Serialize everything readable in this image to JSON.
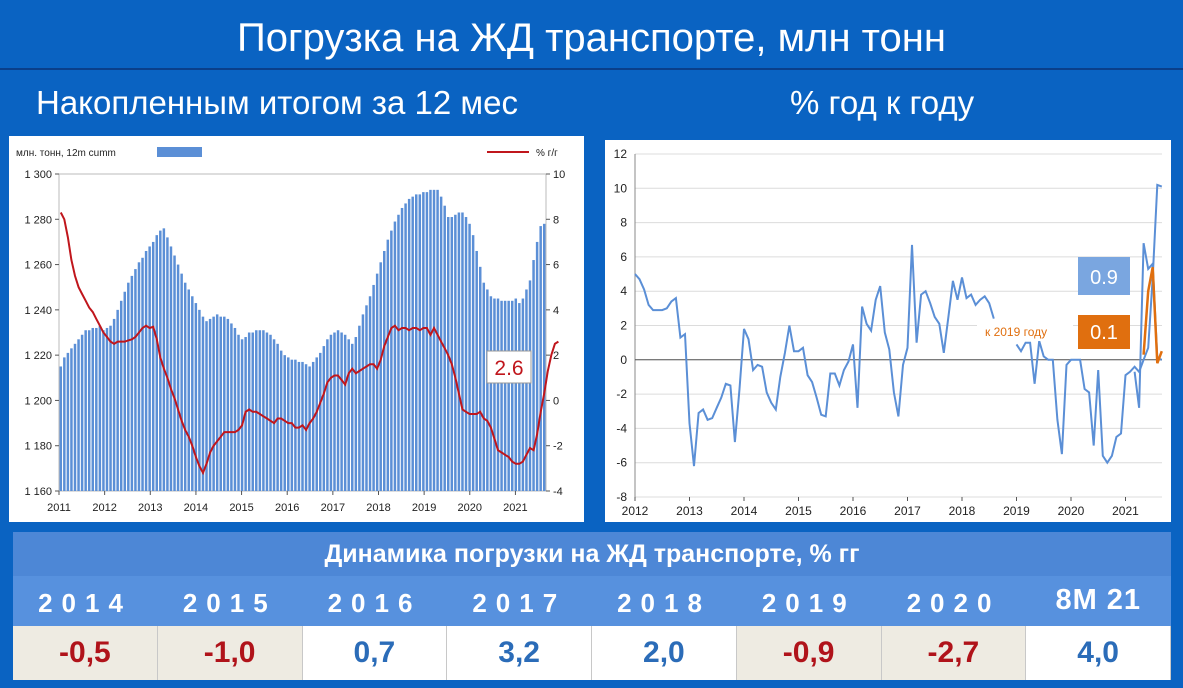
{
  "page": {
    "title": "Погрузка на ЖД транспорте, млн тонн",
    "left_subtitle": "Накопленным итогом за 12 мес",
    "right_subtitle": "% год к году"
  },
  "colors": {
    "background": "#0a63c2",
    "bars": "#5b8fd6",
    "red_line": "#c0161c",
    "blue_line": "#5b8fd6",
    "orange": "#e06f0f",
    "value_box": "#7aa6e0"
  },
  "chart_data": [
    {
      "type": "bar",
      "legend_bar": "млн. тонн, 12m cumm",
      "legend_line": "% г/г",
      "legend_placement": "top",
      "x_tick_labels": [
        "2011",
        "2012",
        "2013",
        "2014",
        "2015",
        "2016",
        "2017",
        "2018",
        "2019",
        "2020",
        "2021"
      ],
      "y_left_ticks": [
        "1 160",
        "1 180",
        "1 200",
        "1 220",
        "1 240",
        "1 260",
        "1 280",
        "1 300"
      ],
      "y_right_ticks": [
        "-4",
        "-2",
        "0",
        "2",
        "4",
        "6",
        "8",
        "10"
      ],
      "ylim_left": [
        1160,
        1300
      ],
      "ylim_right": [
        -4,
        10
      ],
      "x_start": 2011.0,
      "x_end": 2021.67,
      "bars": [
        1215,
        1219,
        1221,
        1223,
        1225,
        1227,
        1229,
        1231,
        1231,
        1232,
        1232,
        1233,
        1231,
        1232,
        1233,
        1236,
        1240,
        1244,
        1248,
        1252,
        1255,
        1258,
        1261,
        1263,
        1266,
        1268,
        1270,
        1273,
        1275,
        1276,
        1272,
        1268,
        1264,
        1260,
        1256,
        1252,
        1249,
        1246,
        1243,
        1240,
        1237,
        1235,
        1236,
        1237,
        1238,
        1237,
        1237,
        1236,
        1234,
        1232,
        1229,
        1227,
        1228,
        1230,
        1230,
        1231,
        1231,
        1231,
        1230,
        1229,
        1227,
        1225,
        1222,
        1220,
        1219,
        1218,
        1218,
        1217,
        1217,
        1216,
        1215,
        1217,
        1219,
        1221,
        1224,
        1227,
        1229,
        1230,
        1231,
        1230,
        1229,
        1227,
        1225,
        1228,
        1233,
        1238,
        1242,
        1246,
        1251,
        1256,
        1261,
        1266,
        1271,
        1275,
        1279,
        1282,
        1285,
        1287,
        1289,
        1290,
        1291,
        1291,
        1292,
        1292,
        1293,
        1293,
        1293,
        1290,
        1286,
        1281,
        1281,
        1282,
        1283,
        1283,
        1281,
        1278,
        1273,
        1266,
        1259,
        1252,
        1249,
        1246,
        1245,
        1245,
        1244,
        1244,
        1244,
        1244,
        1245,
        1243,
        1245,
        1249,
        1253,
        1262,
        1270,
        1277,
        1278
      ],
      "line": [
        8.3,
        8.0,
        7.2,
        6.2,
        5.5,
        5.0,
        4.7,
        4.4,
        4.1,
        3.9,
        3.6,
        3.3,
        3.0,
        2.8,
        2.6,
        2.5,
        2.6,
        2.6,
        2.6,
        2.65,
        2.7,
        2.8,
        3.0,
        3.2,
        3.3,
        3.2,
        3.25,
        2.7,
        1.9,
        1.4,
        1.0,
        0.5,
        0.1,
        -0.4,
        -0.9,
        -1.3,
        -1.6,
        -2.0,
        -2.5,
        -2.9,
        -3.2,
        -2.8,
        -2.3,
        -2.0,
        -1.8,
        -1.6,
        -1.4,
        -1.4,
        -1.4,
        -1.4,
        -1.3,
        -1.1,
        -0.5,
        -0.4,
        -0.5,
        -0.5,
        -0.6,
        -0.7,
        -0.8,
        -0.9,
        -1.0,
        -0.8,
        -0.8,
        -0.9,
        -1.0,
        -1.0,
        -1.2,
        -1.2,
        -1.1,
        -1.3,
        -1.0,
        -0.8,
        -0.5,
        -0.1,
        0.3,
        0.8,
        1.0,
        1.1,
        1.1,
        0.9,
        0.7,
        1.2,
        1.4,
        1.2,
        1.3,
        1.4,
        1.5,
        1.6,
        1.6,
        1.4,
        1.8,
        2.4,
        2.8,
        3.2,
        3.3,
        3.1,
        3.2,
        3.2,
        3.1,
        3.2,
        3.2,
        3.1,
        3.2,
        3.2,
        2.9,
        3.2,
        2.9,
        2.6,
        2.3,
        2.0,
        1.6,
        1.0,
        0.3,
        -0.4,
        -0.5,
        -0.6,
        -0.6,
        -0.6,
        -0.5,
        -0.8,
        -0.9,
        -1.2,
        -1.7,
        -2.2,
        -2.3,
        -2.4,
        -2.5,
        -2.7,
        -2.8,
        -2.8,
        -2.7,
        -2.4,
        -2.1,
        -2.2,
        -1.5,
        -0.5,
        0.3,
        1.3,
        2.0,
        2.5,
        2.6
      ],
      "value_label": "2.6"
    },
    {
      "type": "line",
      "x_tick_labels": [
        "2012",
        "2013",
        "2014",
        "2015",
        "2016",
        "2017",
        "2018",
        "2019",
        "2020",
        "2021"
      ],
      "y_ticks": [
        "12",
        "10",
        "8",
        "6",
        "4",
        "2",
        "0",
        "-2",
        "-4",
        "-6",
        "-8"
      ],
      "ylim": [
        -8,
        12
      ],
      "x_start": 2012.0,
      "x_end": 2021.67,
      "series": [
        {
          "x": [
            2012.0,
            2012.083,
            2012.167,
            2012.25,
            2012.333,
            2012.417,
            2012.5,
            2012.583,
            2012.667,
            2012.75,
            2012.833,
            2012.917,
            2013.0,
            2013.083,
            2013.167,
            2013.25,
            2013.333,
            2013.417,
            2013.5,
            2013.583,
            2013.667,
            2013.75,
            2013.833,
            2013.917,
            2014.0,
            2014.083,
            2014.167,
            2014.25,
            2014.333,
            2014.417,
            2014.5,
            2014.583,
            2014.667,
            2014.75,
            2014.833,
            2014.917,
            2015.0,
            2015.083,
            2015.167,
            2015.25,
            2015.333,
            2015.417,
            2015.5,
            2015.583,
            2015.667,
            2015.75,
            2015.833,
            2015.917,
            2016.0,
            2016.083,
            2016.167,
            2016.25,
            2016.333,
            2016.417,
            2016.5,
            2016.583,
            2016.667,
            2016.75,
            2016.833,
            2016.917,
            2017.0,
            2017.083,
            2017.167,
            2017.25,
            2017.333,
            2017.417,
            2017.5,
            2017.583,
            2017.667,
            2017.75,
            2017.833,
            2017.917,
            2018.0,
            2018.083,
            2018.167,
            2018.25,
            2018.333,
            2018.417,
            2018.5,
            2018.583,
            2018.667,
            2018.75,
            2018.833,
            2018.917,
            2019.0,
            2019.083,
            2019.167,
            2019.25,
            2019.333,
            2019.417,
            2019.5,
            2019.583,
            2019.667,
            2019.75,
            2019.833,
            2019.917,
            2020.0,
            2020.083,
            2020.167,
            2020.25,
            2020.333,
            2020.417,
            2020.5,
            2020.583,
            2020.667,
            2020.75,
            2020.833,
            2020.917,
            2021.0,
            2021.083,
            2021.167,
            2021.25,
            2021.333,
            2021.417,
            2021.5,
            2021.583,
            2021.667
          ],
          "y": [
            5.0,
            4.7,
            4.1,
            3.2,
            2.9,
            2.9,
            2.9,
            3.0,
            3.4,
            3.6,
            1.3,
            1.5,
            -3.7,
            -6.2,
            -3.1,
            -2.9,
            -3.5,
            -3.4,
            -2.8,
            -2.2,
            -1.4,
            -1.5,
            -4.8,
            -1.7,
            1.8,
            1.2,
            -0.6,
            -0.3,
            -0.4,
            -1.9,
            -2.5,
            -2.9,
            -1.0,
            0.4,
            2.0,
            0.5,
            0.5,
            0.7,
            -0.9,
            -1.3,
            -2.2,
            -3.2,
            -3.3,
            -0.8,
            -0.8,
            -1.5,
            -0.6,
            -0.1,
            0.9,
            -2.8,
            3.1,
            2.1,
            1.7,
            3.5,
            4.3,
            1.6,
            0.6,
            -1.9,
            -3.3,
            -0.3,
            0.7,
            6.7,
            1.0,
            3.8,
            4.0,
            3.3,
            2.5,
            2.1,
            0.4,
            2.5,
            4.6,
            3.5,
            4.8,
            3.6,
            3.8,
            3.2,
            3.5,
            3.7,
            3.3,
            2.4,
            null,
            null,
            null,
            null,
            0.9,
            0.5,
            1.0,
            1.0,
            -1.4,
            1.1,
            0.2,
            0.0,
            0.0,
            -3.5,
            -5.5,
            -0.3,
            0.0,
            0.0,
            0.0,
            -1.7,
            -1.9,
            -5.0,
            -0.6,
            -5.6,
            -6.0,
            -5.6,
            -4.5,
            -4.3,
            -0.9,
            -0.7,
            -0.4,
            -0.7,
            0.0,
            0.7,
            4.8,
            10.2,
            10.1
          ]
        },
        {
          "x": [
            2021.167,
            2021.25,
            2021.333,
            2021.417,
            2021.5,
            2021.583,
            2021.667
          ],
          "y": [
            -0.7,
            -2.8,
            6.8,
            5.3,
            5.6,
            0.1,
            0.0
          ]
        },
        {
          "x": [
            2021.333,
            2021.417,
            2021.5,
            2021.583,
            2021.667
          ],
          "y": [
            0.3,
            4.0,
            5.4,
            -0.2,
            0.5
          ]
        }
      ],
      "annotations": {
        "value_box_blue": "0.9",
        "value_box_orange": "0.1",
        "orange_note": "к 2019 году"
      }
    }
  ],
  "table": {
    "title": "Динамика погрузки на ЖД транспорте, % гг",
    "years": [
      "2014",
      "2015",
      "2016",
      "2017",
      "2018",
      "2019",
      "2020",
      "8М 21"
    ],
    "values": [
      "-0,5",
      "-1,0",
      "0,7",
      "3,2",
      "2,0",
      "-0,9",
      "-2,7",
      "4,0"
    ],
    "signs": [
      "neg",
      "neg",
      "pos",
      "pos",
      "pos",
      "neg",
      "neg",
      "pos"
    ]
  }
}
